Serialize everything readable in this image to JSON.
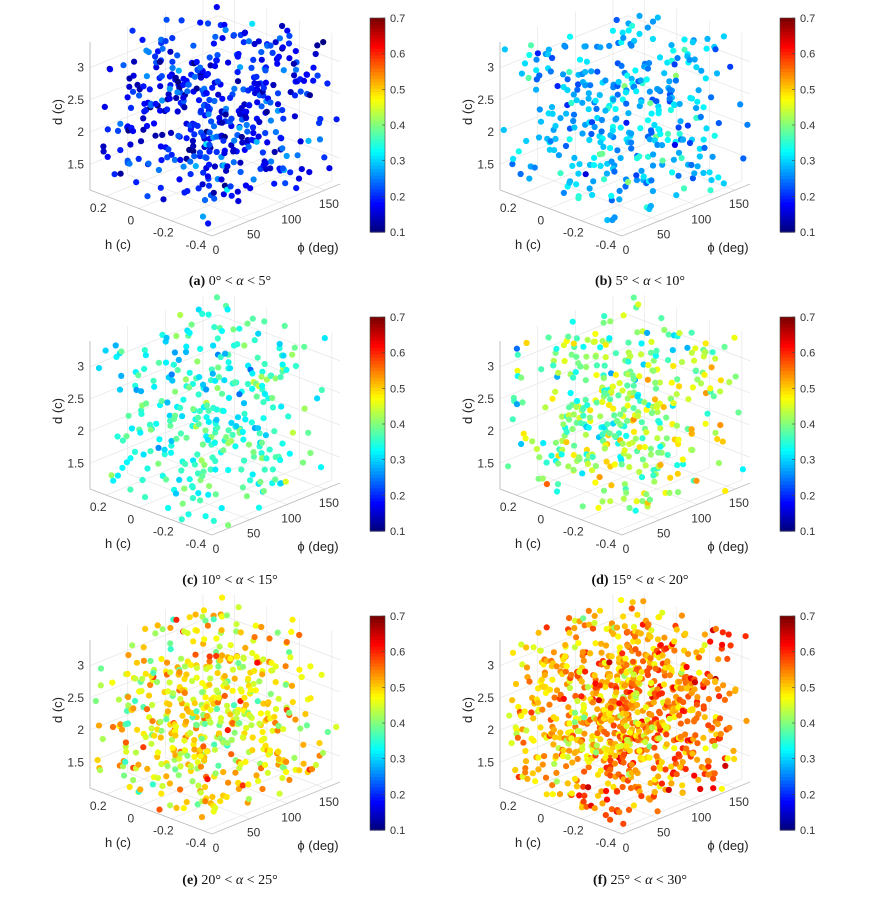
{
  "figure": {
    "colormap": "jet",
    "colorbar": {
      "ticks": [
        "0.1",
        "0.2",
        "0.3",
        "0.4",
        "0.5",
        "0.6",
        "0.7"
      ],
      "range": [
        0.1,
        0.7
      ]
    },
    "axes": {
      "xlabel": "ϕ (deg)",
      "ylabel": "h (c)",
      "zlabel": "d (c)",
      "x_ticks": [
        "0",
        "50",
        "100",
        "150"
      ],
      "y_ticks": [
        "-0.4",
        "-0.2",
        "0",
        "0.2"
      ],
      "z_ticks": [
        "1.5",
        "2",
        "2.5",
        "3"
      ]
    }
  },
  "chart_data": [
    {
      "type": "scatter",
      "title": "0° < α < 5°",
      "tag": "(a)",
      "alpha_lo": "0°",
      "alpha_hi": "5°",
      "xlabel": "ϕ (deg)",
      "ylabel": "h (c)",
      "zlabel": "d (c)",
      "xlim": [
        0,
        170
      ],
      "ylim": [
        -0.45,
        0.3
      ],
      "zlim": [
        1.1,
        3.4
      ],
      "clim": [
        0.1,
        0.7
      ],
      "n_points": 450,
      "color_mean": 0.19,
      "color_spread": 0.06
    },
    {
      "type": "scatter",
      "title": "5° < α < 10°",
      "tag": "(b)",
      "alpha_lo": "5°",
      "alpha_hi": "10°",
      "xlabel": "ϕ (deg)",
      "ylabel": "h (c)",
      "zlabel": "d (c)",
      "xlim": [
        0,
        170
      ],
      "ylim": [
        -0.45,
        0.3
      ],
      "zlim": [
        1.1,
        3.4
      ],
      "clim": [
        0.1,
        0.7
      ],
      "n_points": 360,
      "color_mean": 0.28,
      "color_spread": 0.06
    },
    {
      "type": "scatter",
      "title": "10° < α < 15°",
      "tag": "(c)",
      "alpha_lo": "10°",
      "alpha_hi": "15°",
      "xlabel": "ϕ (deg)",
      "ylabel": "h (c)",
      "zlabel": "d (c)",
      "xlim": [
        0,
        170
      ],
      "ylim": [
        -0.45,
        0.3
      ],
      "zlim": [
        1.1,
        3.4
      ],
      "clim": [
        0.1,
        0.7
      ],
      "n_points": 330,
      "color_mean": 0.34,
      "color_spread": 0.06
    },
    {
      "type": "scatter",
      "title": "15° < α < 20°",
      "tag": "(d)",
      "alpha_lo": "15°",
      "alpha_hi": "20°",
      "xlabel": "ϕ (deg)",
      "ylabel": "h (c)",
      "zlabel": "d (c)",
      "xlim": [
        0,
        170
      ],
      "ylim": [
        -0.45,
        0.3
      ],
      "zlim": [
        1.1,
        3.4
      ],
      "clim": [
        0.1,
        0.7
      ],
      "n_points": 400,
      "color_mean": 0.4,
      "color_spread": 0.08
    },
    {
      "type": "scatter",
      "title": "20° < α < 25°",
      "tag": "(e)",
      "alpha_lo": "20°",
      "alpha_hi": "25°",
      "xlabel": "ϕ (deg)",
      "ylabel": "h (c)",
      "zlabel": "d (c)",
      "xlim": [
        0,
        170
      ],
      "ylim": [
        -0.45,
        0.3
      ],
      "zlim": [
        1.1,
        3.4
      ],
      "clim": [
        0.1,
        0.7
      ],
      "n_points": 520,
      "color_mean": 0.47,
      "color_spread": 0.08
    },
    {
      "type": "scatter",
      "title": "25° < α < 30°",
      "tag": "(f)",
      "alpha_lo": "25°",
      "alpha_hi": "30°",
      "xlabel": "ϕ (deg)",
      "ylabel": "h (c)",
      "zlabel": "d (c)",
      "xlim": [
        0,
        170
      ],
      "ylim": [
        -0.45,
        0.3
      ],
      "zlim": [
        1.1,
        3.4
      ],
      "clim": [
        0.1,
        0.7
      ],
      "n_points": 900,
      "color_mean": 0.52,
      "color_spread": 0.07
    }
  ]
}
